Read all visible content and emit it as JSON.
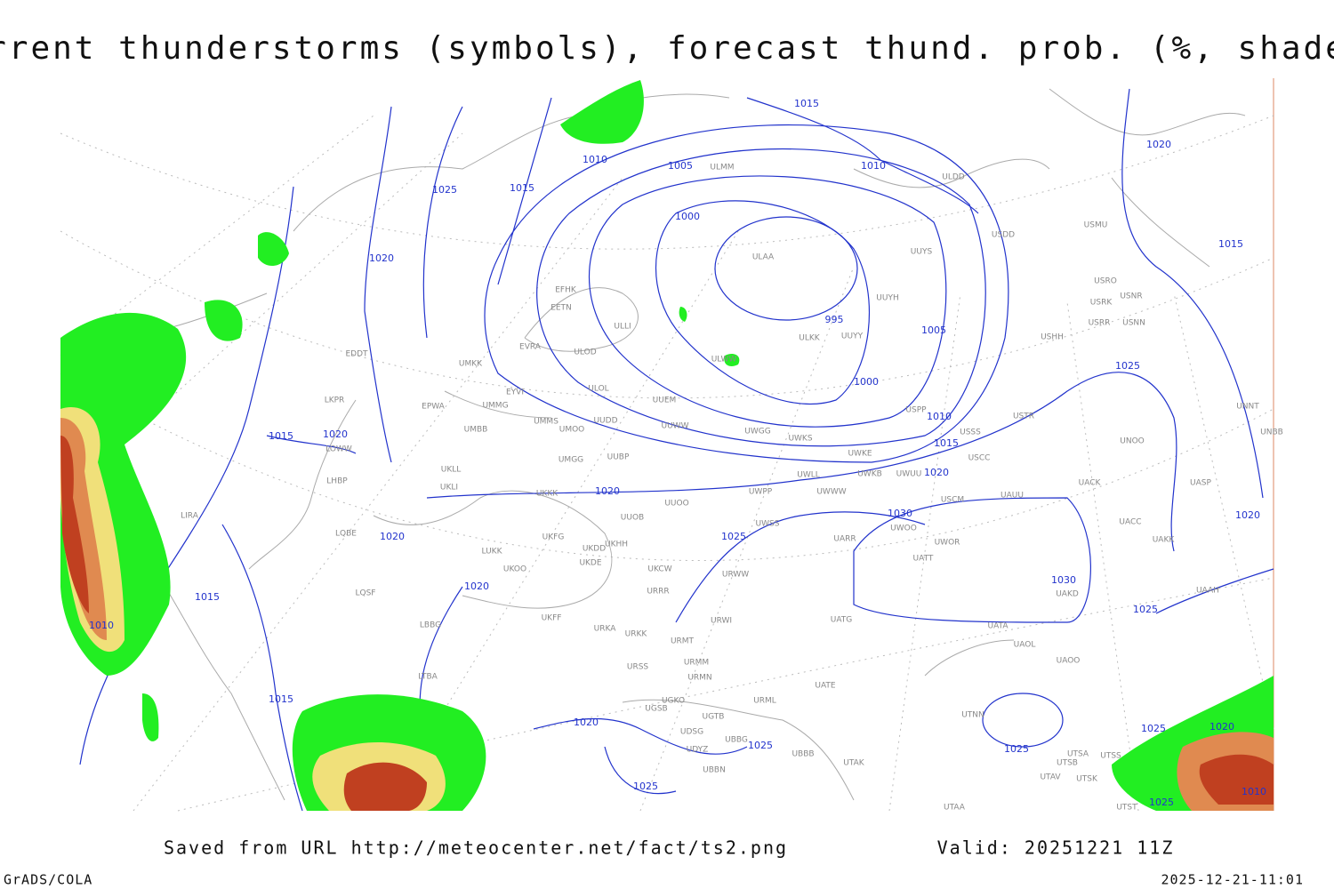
{
  "header": {
    "title": "Current thunderstorms (symbols), forecast thund. prob. (%, shaded)"
  },
  "isobar_labels": [
    1015,
    1010,
    1005,
    1010,
    1025,
    1015,
    1000,
    1020,
    995,
    1005,
    1000,
    1010,
    1015,
    1020,
    1015,
    1020,
    1020,
    1030,
    1025,
    1020,
    1020,
    1030,
    1015,
    1025,
    1010,
    1015,
    1020,
    1025,
    1025,
    1025,
    1025,
    1015,
    1020,
    1020,
    1025,
    1020,
    1010,
    1025
  ],
  "stations": [
    "ULMM",
    "ULDD",
    "USDD",
    "USMU",
    "ULAA",
    "UUYS",
    "EFHK",
    "EETN",
    "USRO",
    "USRK",
    "USNR",
    "UUYH",
    "USRR",
    "USNN",
    "ULLI",
    "UUYY",
    "ULKK",
    "USHH",
    "EVRA",
    "ULOD",
    "EDDT",
    "UMKK",
    "ULWW",
    "EYVI",
    "ULOL",
    "UUEM",
    "LKPR",
    "EPWA",
    "UMMG",
    "USPP",
    "USTR",
    "UNNT",
    "UMMS",
    "UMOO",
    "UUDD",
    "UUWW",
    "UMBB",
    "UWGG",
    "UWKS",
    "USSS",
    "UNOO",
    "UNBB",
    "LOWW",
    "UWKE",
    "UMGG",
    "UUBP",
    "UWLL",
    "UWKB",
    "UWUU",
    "USCC",
    "UASP",
    "UACK",
    "USCM",
    "UAUU",
    "LHBP",
    "UKLL",
    "UKLI",
    "UKKK",
    "UUOO",
    "UWPP",
    "UWWW",
    "UUOB",
    "LIRA",
    "UWSS",
    "UWOO",
    "UACC",
    "UAKK",
    "LQBE",
    "UKHH",
    "UKDD",
    "UKFG",
    "UARR",
    "UWOR",
    "LUKK",
    "UKDE",
    "UATT",
    "UKOO",
    "UKCW",
    "URWW",
    "LQSF",
    "URRR",
    "UAKD",
    "UAAH",
    "UKFF",
    "URKA",
    "URKK",
    "URWI",
    "UATG",
    "UATA",
    "UAOL",
    "LBBG",
    "URMT",
    "UAOO",
    "URSS",
    "URMM",
    "LTBA",
    "URMN",
    "UATE",
    "UGKO",
    "URML",
    "UGSB",
    "UGTB",
    "UTNN",
    "UDSG",
    "UBBG",
    "UDYZ",
    "UBBB",
    "UTSA",
    "UTSS",
    "UTAK",
    "UTSB",
    "UBBN",
    "UTSK",
    "UTAV",
    "UTAA",
    "UTST"
  ],
  "footer": {
    "saved": "Saved from URL http://meteocenter.net/fact/ts2.png",
    "valid": "Valid: 20251221 11Z",
    "software": "GrADS/COLA",
    "timestamp": "2025-12-21-11:01"
  }
}
